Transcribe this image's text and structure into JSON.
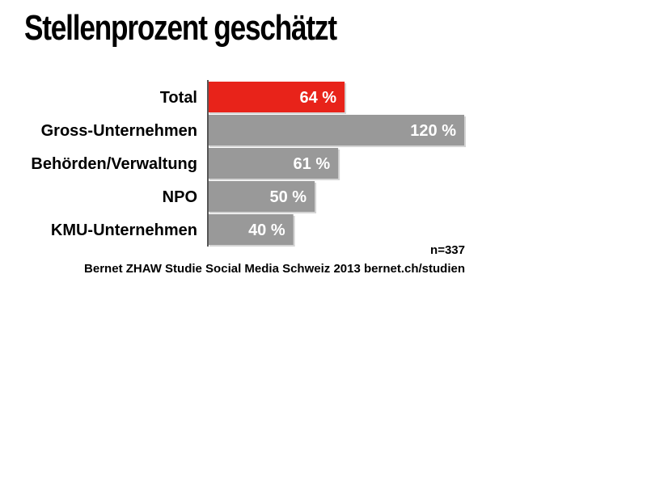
{
  "title": "Stellenprozent geschätzt",
  "chart_data": {
    "type": "bar",
    "orientation": "horizontal",
    "categories": [
      "Total",
      "Gross-Unternehmen",
      "Behörden/Verwaltung",
      "NPO",
      "KMU-Unternehmen"
    ],
    "values": [
      64,
      120,
      61,
      50,
      40
    ],
    "value_labels": [
      "64 %",
      "120 %",
      "61 %",
      "50 %",
      "40 %"
    ],
    "unit": "%",
    "title": "Stellenprozent geschätzt",
    "xlabel": "",
    "ylabel": "",
    "xlim": [
      0,
      120
    ],
    "grid": false,
    "legend": "none",
    "colors": {
      "highlight": "#e8231a",
      "default": "#999999",
      "axis": "#555555"
    },
    "highlight_index": 0
  },
  "footnotes": {
    "sample": "n=337",
    "source": "Bernet ZHAW Studie Social Media Schweiz 2013 bernet.ch/studien"
  }
}
